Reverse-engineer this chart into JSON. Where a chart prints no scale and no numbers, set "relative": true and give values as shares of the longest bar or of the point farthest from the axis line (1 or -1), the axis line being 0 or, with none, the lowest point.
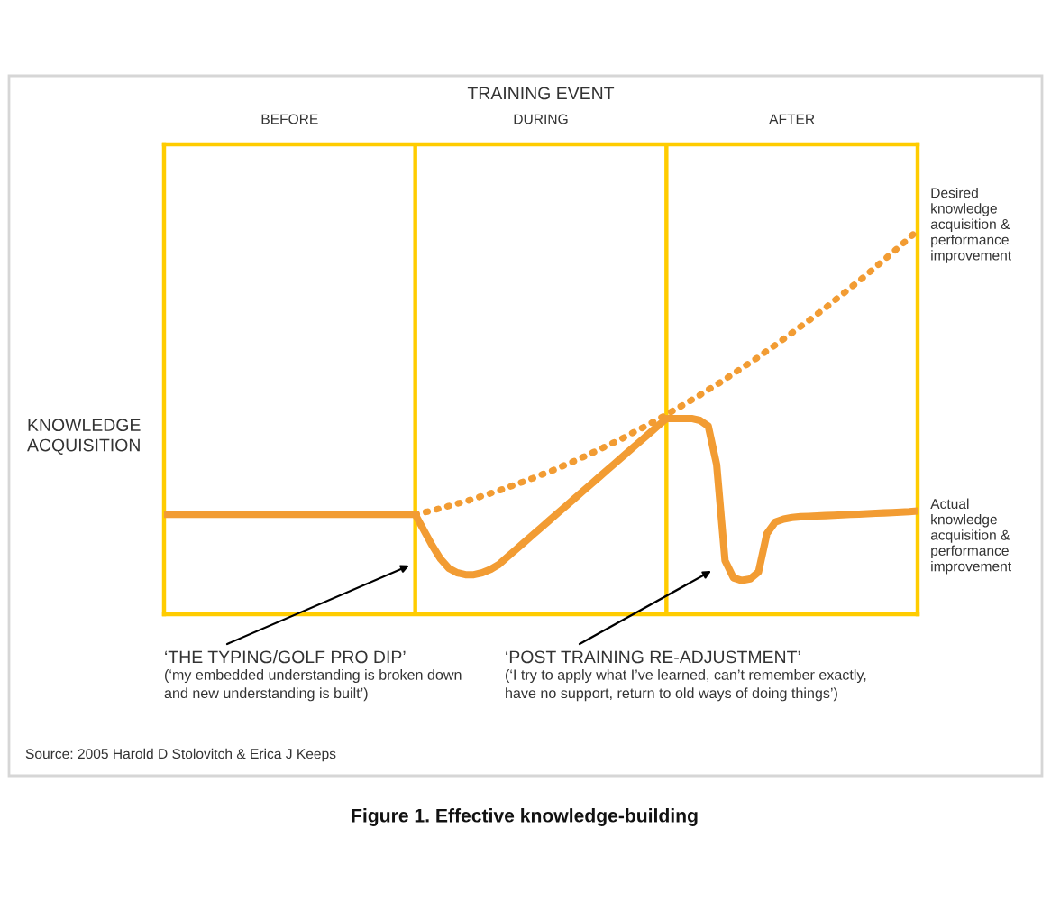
{
  "chart_data": {
    "type": "line",
    "title": "Figure 1. Effective knowledge-building",
    "xlabel": "TRAINING EVENT",
    "ylabel": "KNOWLEDGE\nACQUISITION",
    "relative": true,
    "categories": [
      null,
      null,
      null,
      null,
      null,
      null,
      null,
      null,
      null,
      null,
      null,
      null,
      null,
      null,
      null,
      "BEFORE",
      null,
      null,
      null,
      null,
      null,
      null,
      null,
      null,
      null,
      null,
      null,
      null,
      null,
      null,
      null,
      null,
      null,
      null,
      null,
      null,
      null,
      null,
      null,
      null,
      null,
      null,
      null,
      null,
      null,
      "DURING",
      null,
      null,
      null,
      null,
      null,
      null,
      null,
      null,
      null,
      null,
      null,
      null,
      null,
      null,
      null,
      null,
      null,
      null,
      null,
      null,
      null,
      null,
      null,
      null,
      null,
      null,
      null,
      null,
      null,
      "AFTER",
      null,
      null,
      null,
      null,
      null,
      null,
      null,
      null,
      null,
      null,
      null,
      null,
      null,
      null,
      null
    ],
    "series": [
      {
        "name": "Desired\nknowledge\nacquisition &\nperformance\nimprovement",
        "color": "#f29c33",
        "line_style": "dotted",
        "values": [
          null,
          null,
          null,
          null,
          null,
          null,
          null,
          null,
          null,
          null,
          null,
          null,
          null,
          null,
          null,
          null,
          null,
          null,
          null,
          null,
          null,
          null,
          null,
          null,
          null,
          null,
          null,
          null,
          null,
          null,
          0.26,
          0.265,
          0.27,
          0.276,
          0.282,
          0.288,
          0.294,
          0.301,
          0.308,
          0.315,
          0.322,
          0.33,
          0.338,
          0.346,
          0.354,
          0.363,
          0.371,
          0.38,
          0.39,
          0.399,
          0.409,
          0.419,
          0.429,
          0.44,
          0.45,
          0.461,
          0.473,
          0.484,
          0.496,
          0.508,
          0.52,
          0.533,
          0.545,
          0.558,
          0.571,
          0.585,
          0.598,
          0.612,
          0.627,
          0.641,
          0.656,
          0.67,
          0.686,
          0.701,
          0.717,
          0.733,
          0.749,
          0.765,
          0.782,
          0.798,
          0.816,
          0.833,
          0.851,
          0.868,
          0.886,
          0.905,
          0.923,
          0.942,
          0.961,
          0.98,
          1.0
        ]
      },
      {
        "name": "Actual\nknowledge\nacquisition &\nperformance\nimprovement",
        "color": "#f29c33",
        "line_style": "solid",
        "values": [
          0.26,
          0.26,
          0.26,
          0.26,
          0.26,
          0.26,
          0.26,
          0.26,
          0.26,
          0.26,
          0.26,
          0.26,
          0.26,
          0.26,
          0.26,
          0.26,
          0.26,
          0.26,
          0.26,
          0.26,
          0.26,
          0.26,
          0.26,
          0.26,
          0.26,
          0.26,
          0.26,
          0.26,
          0.26,
          0.26,
          0.26,
          0.22,
          0.18,
          0.145,
          0.12,
          0.108,
          0.103,
          0.103,
          0.108,
          0.117,
          0.13,
          0.149,
          0.168,
          0.187,
          0.206,
          0.225,
          0.244,
          0.263,
          0.282,
          0.301,
          0.32,
          0.339,
          0.358,
          0.377,
          0.396,
          0.415,
          0.434,
          0.453,
          0.472,
          0.491,
          0.51,
          0.51,
          0.51,
          0.51,
          0.505,
          0.49,
          0.39,
          0.14,
          0.095,
          0.088,
          0.092,
          0.11,
          0.21,
          0.24,
          0.248,
          0.252,
          0.254,
          0.255,
          0.256,
          0.257,
          0.258,
          0.259,
          0.26,
          0.261,
          0.262,
          0.263,
          0.264,
          0.265,
          0.266,
          0.267,
          0.269
        ]
      }
    ],
    "annotations": [
      "‘THE TYPING/GOLF PRO DIP’",
      "(‘my embedded understanding is broken down\nand new understanding is built’)",
      "‘POST TRAINING RE-ADJUSTMENT’",
      "(‘I try to apply what I’ve learned, can’t remember exactly,\nhave no support, return to old ways of doing things’)",
      "Source: 2005 Harold D Stolovitch & Erica J Keeps"
    ]
  }
}
